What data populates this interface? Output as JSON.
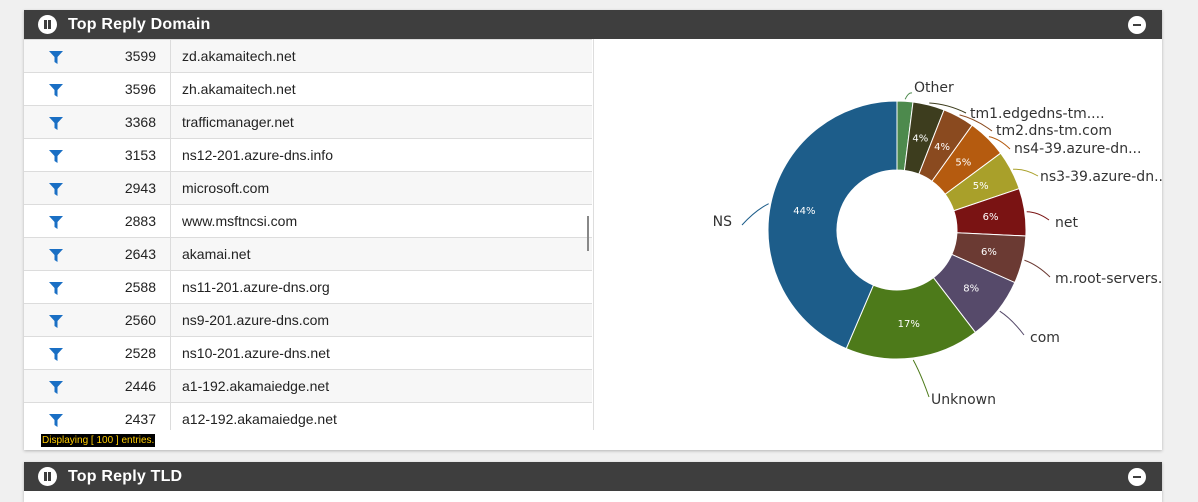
{
  "panel1": {
    "title": "Top Reply Domain",
    "rows": [
      {
        "count": "3599",
        "domain": "zd.akamaitech.net"
      },
      {
        "count": "3596",
        "domain": "zh.akamaitech.net"
      },
      {
        "count": "3368",
        "domain": "trafficmanager.net"
      },
      {
        "count": "3153",
        "domain": "ns12-201.azure-dns.info"
      },
      {
        "count": "2943",
        "domain": "microsoft.com"
      },
      {
        "count": "2883",
        "domain": "www.msftncsi.com"
      },
      {
        "count": "2643",
        "domain": "akamai.net"
      },
      {
        "count": "2588",
        "domain": "ns11-201.azure-dns.org"
      },
      {
        "count": "2560",
        "domain": "ns9-201.azure-dns.com"
      },
      {
        "count": "2528",
        "domain": "ns10-201.azure-dns.net"
      },
      {
        "count": "2446",
        "domain": "a1-192.akamaiedge.net"
      },
      {
        "count": "2437",
        "domain": "a12-192.akamaiedge.net"
      }
    ],
    "footer": "Displaying [ 100 ] entries."
  },
  "panel2": {
    "title": "Top Reply TLD"
  },
  "colors": {
    "header": "#3e3e3e",
    "filter_icon": "#1a6fc4",
    "footer_text": "#ffcc00"
  },
  "chart_data": {
    "type": "pie",
    "donut": true,
    "slices": [
      {
        "label": "Other",
        "value": 2,
        "pct_label": "",
        "color": "#4d8a4d"
      },
      {
        "label": "tm1.edgedns-tm....",
        "value": 4,
        "pct_label": "4%",
        "color": "#3d3d1e"
      },
      {
        "label": "tm2.dns-tm.com",
        "value": 4,
        "pct_label": "4%",
        "color": "#8a4a1f"
      },
      {
        "label": "ns4-39.azure-dn...",
        "value": 5,
        "pct_label": "5%",
        "color": "#b55b0f"
      },
      {
        "label": "ns3-39.azure-dn...",
        "value": 5,
        "pct_label": "5%",
        "color": "#a9a02a"
      },
      {
        "label": "net",
        "value": 6,
        "pct_label": "6%",
        "color": "#7a1313"
      },
      {
        "label": "m.root-servers...",
        "value": 6,
        "pct_label": "6%",
        "color": "#6b3a33"
      },
      {
        "label": "com",
        "value": 8,
        "pct_label": "8%",
        "color": "#564a6a"
      },
      {
        "label": "Unknown",
        "value": 17,
        "pct_label": "17%",
        "color": "#4d7a1a"
      },
      {
        "label": "NS",
        "value": 44,
        "pct_label": "44%",
        "color": "#1d5d8a"
      }
    ]
  }
}
